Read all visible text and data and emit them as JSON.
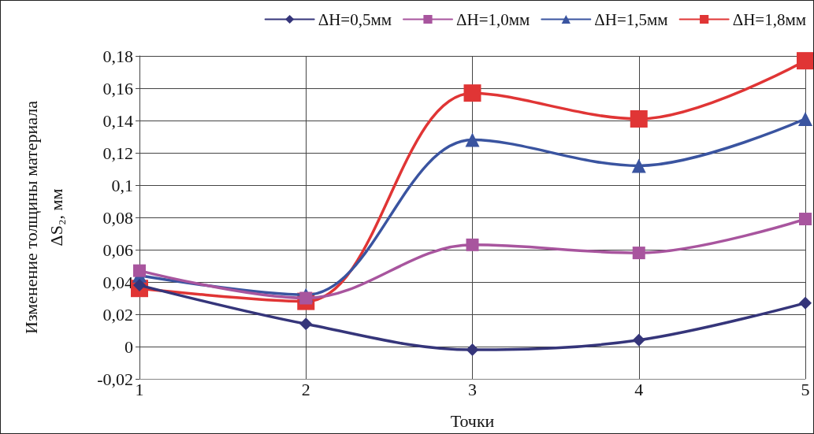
{
  "chart_data": {
    "type": "line",
    "xlabel": "Точки",
    "ylabel": "Изменение толщины материала\nΔS₂, мм",
    "x": [
      1,
      2,
      3,
      4,
      5
    ],
    "series": [
      {
        "name": "ΔH=0,5мм",
        "color": "#35357a",
        "marker": "diamond",
        "values": [
          0.038,
          0.014,
          -0.002,
          0.004,
          0.027
        ]
      },
      {
        "name": "ΔH=1,0мм",
        "color": "#a8559e",
        "marker": "square",
        "values": [
          0.047,
          0.03,
          0.063,
          0.058,
          0.079
        ]
      },
      {
        "name": "ΔH=1,5мм",
        "color": "#3a54a0",
        "marker": "triangle",
        "values": [
          0.044,
          0.032,
          0.128,
          0.112,
          0.141
        ]
      },
      {
        "name": "ΔH=1,8мм",
        "color": "#e03535",
        "marker": "square",
        "values": [
          0.036,
          0.028,
          0.157,
          0.141,
          0.177
        ]
      }
    ],
    "xlim": [
      1,
      5
    ],
    "xticks": [
      1,
      2,
      3,
      4,
      5
    ],
    "ylim": [
      -0.02,
      0.18
    ],
    "yticks": [
      {
        "value": -0.02,
        "label": "-0,02"
      },
      {
        "value": 0,
        "label": "0"
      },
      {
        "value": 0.02,
        "label": "0,02"
      },
      {
        "value": 0.04,
        "label": "0,04"
      },
      {
        "value": 0.06,
        "label": "0,06"
      },
      {
        "value": 0.08,
        "label": "0,08"
      },
      {
        "value": 0.1,
        "label": "0,1"
      },
      {
        "value": 0.12,
        "label": "0,12"
      },
      {
        "value": 0.14,
        "label": "0,14"
      },
      {
        "value": 0.16,
        "label": "0,16"
      },
      {
        "value": 0.18,
        "label": "0,18"
      }
    ],
    "grid": true,
    "legend": "top right",
    "line_style": "solid"
  }
}
